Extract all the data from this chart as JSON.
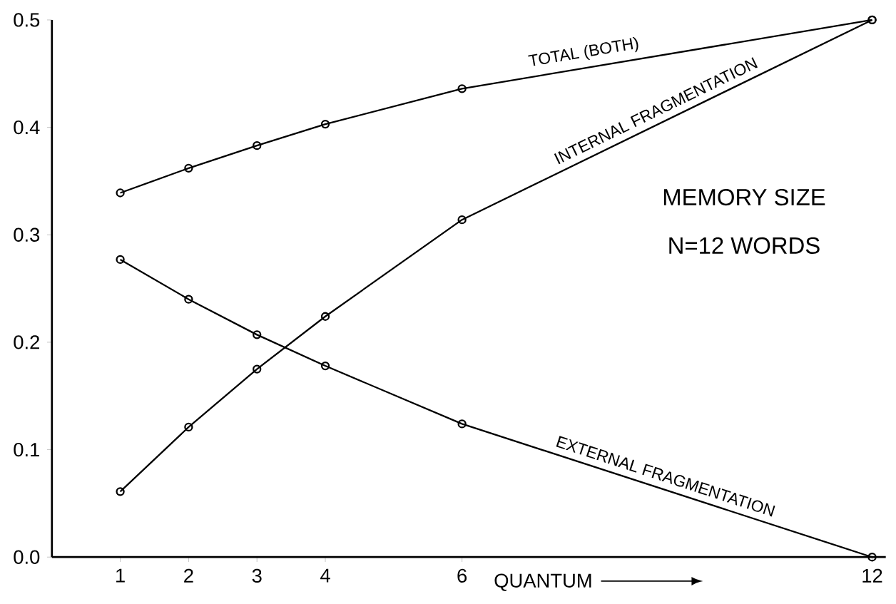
{
  "chart_data": {
    "type": "line",
    "xlabel": "QUANTUM",
    "x": [
      1,
      2,
      3,
      4,
      6,
      12
    ],
    "series": [
      {
        "name": "TOTAL (BOTH)",
        "color": "#000000",
        "values": [
          0.339,
          0.362,
          0.383,
          0.403,
          0.436,
          0.5
        ]
      },
      {
        "name": "INTERNAL FRAGMENTATION",
        "color": "#000000",
        "values": [
          0.061,
          0.121,
          0.175,
          0.224,
          0.314,
          0.5
        ]
      },
      {
        "name": "EXTERNAL FRAGMENTATION",
        "color": "#000000",
        "values": [
          0.277,
          0.24,
          0.207,
          0.178,
          0.124,
          0.0
        ]
      }
    ],
    "xlim": [
      0,
      12.2
    ],
    "ylim": [
      0,
      0.5
    ],
    "xticks": [
      1,
      2,
      3,
      4,
      6,
      12
    ],
    "yticks": [
      {
        "value": 0,
        "label": "0.0"
      },
      0.1,
      0.2,
      0.3,
      0.4,
      0.5
    ],
    "annotations": [
      "MEMORY SIZE",
      "N=12 WORDS"
    ],
    "marker": "circle",
    "line_style": "solid",
    "legend": false,
    "grid": false
  }
}
